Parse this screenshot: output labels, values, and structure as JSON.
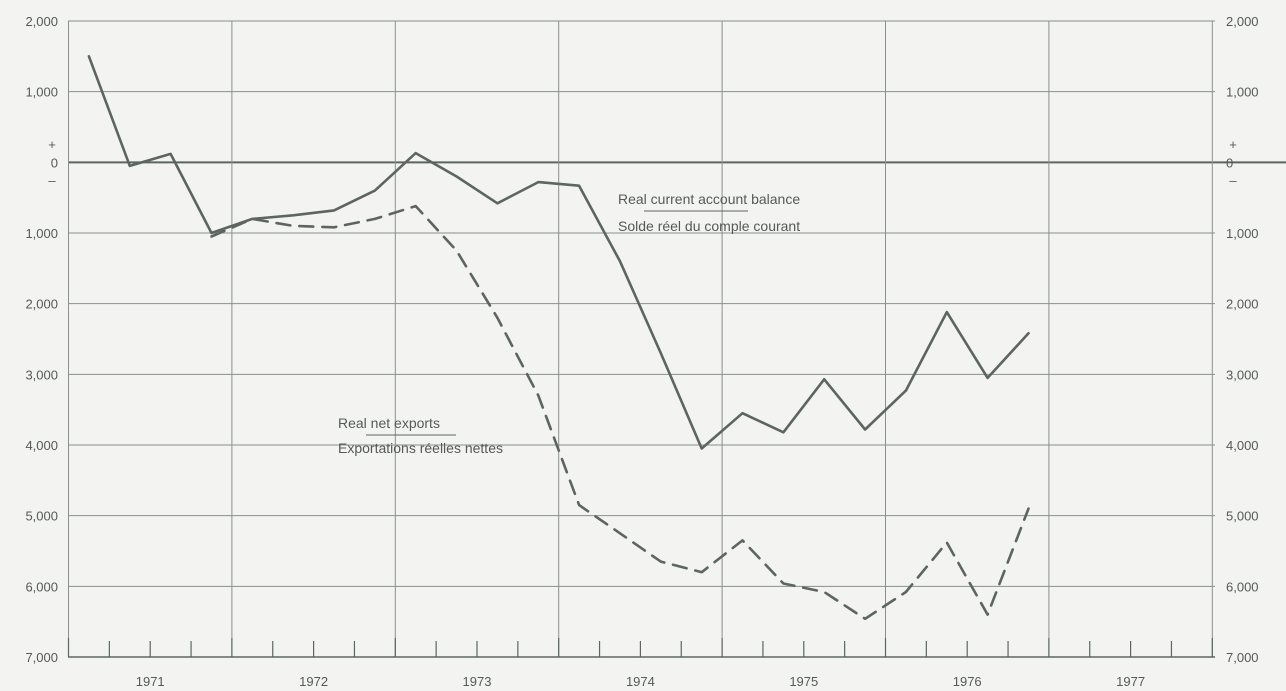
{
  "chart_data": {
    "type": "line",
    "title": "",
    "xlabel": "",
    "ylabel": "",
    "x_tick_labels": [
      "1971",
      "1972",
      "1973",
      "1974",
      "1975",
      "1976",
      "1977"
    ],
    "y_tick_labels": [
      "2,000",
      "1,000",
      "0",
      "1,000",
      "2,000",
      "3,000",
      "4,000",
      "5,000",
      "6,000",
      "7,000"
    ],
    "y_tick_values": [
      2000,
      1000,
      0,
      -1000,
      -2000,
      -3000,
      -4000,
      -5000,
      -6000,
      -7000
    ],
    "sign_labels": {
      "plus": "+",
      "minus": "–"
    },
    "ylim": [
      -7000,
      2000
    ],
    "xlim": [
      "1971-Q1",
      "1977-Q4"
    ],
    "x": [
      "1971-Q1",
      "1971-Q2",
      "1971-Q3",
      "1971-Q4",
      "1972-Q1",
      "1972-Q2",
      "1972-Q3",
      "1972-Q4",
      "1973-Q1",
      "1973-Q2",
      "1973-Q3",
      "1973-Q4",
      "1974-Q1",
      "1974-Q2",
      "1974-Q3",
      "1974-Q4",
      "1975-Q1",
      "1975-Q2",
      "1975-Q3",
      "1975-Q4",
      "1976-Q1",
      "1976-Q2",
      "1976-Q3",
      "1976-Q4"
    ],
    "grid": true,
    "series": [
      {
        "name": "Real current account balance / Solde réel du comple courant",
        "style": "solid",
        "color": "#5c665e",
        "values": [
          1500,
          -50,
          120,
          -1000,
          -800,
          -750,
          -680,
          -400,
          130,
          -200,
          -580,
          -280,
          -330,
          -1400,
          -2700,
          -4050,
          -3550,
          -3820,
          -3070,
          -3780,
          -3230,
          -2120,
          -3050,
          -2420
        ]
      },
      {
        "name": "Real net exports / Exportations réelles nettes",
        "style": "dashed",
        "color": "#5c665e",
        "values": [
          null,
          null,
          null,
          -1050,
          -800,
          -900,
          -920,
          -800,
          -620,
          -1250,
          -2200,
          -3300,
          -4850,
          -5250,
          -5650,
          -5800,
          -5350,
          -5960,
          -6080,
          -6460,
          -6080,
          -5380,
          -6400,
          -4900
        ]
      }
    ],
    "annotations": [
      {
        "line1": "Real current account balance",
        "line2": "Solde réel du comple courant"
      },
      {
        "line1": "Real net exports",
        "line2": "Exportations réelles nettes"
      }
    ]
  }
}
